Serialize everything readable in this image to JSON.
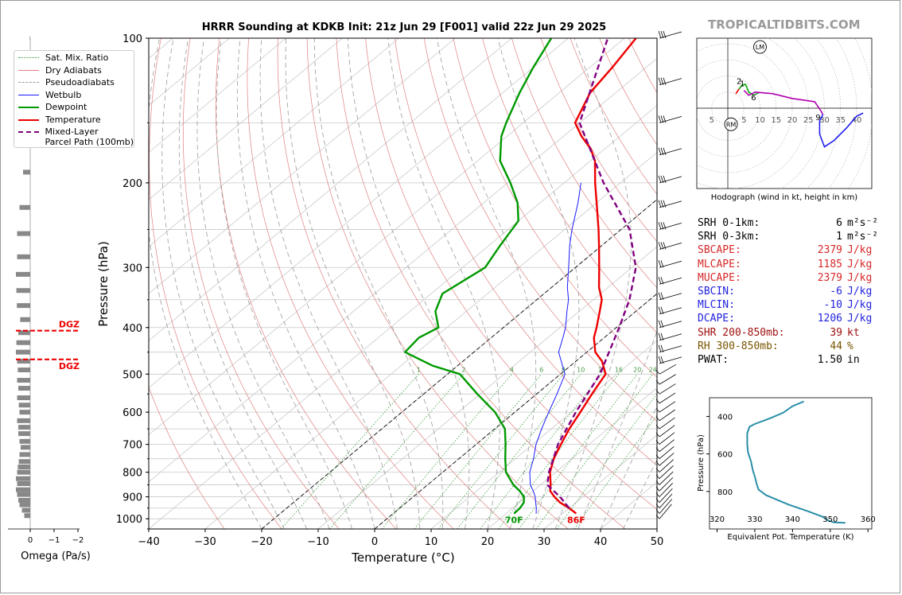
{
  "watermark": "TROPICALTIDBITS.COM",
  "title": "HRRR Sounding at KDKB Init: 21z Jun 29 [F001] valid 22z Jun 29 2025",
  "skewt": {
    "xlabel": "Temperature (°C)",
    "ylabel": "Pressure (hPa)",
    "xticks": [
      "−40",
      "−30",
      "−20",
      "−10",
      "0",
      "10",
      "20",
      "30",
      "40",
      "50"
    ],
    "yticks": [
      "100",
      "200",
      "300",
      "400",
      "500",
      "600",
      "700",
      "800",
      "900",
      "1000"
    ],
    "surface_temp_label": "86F",
    "surface_dewpoint_label": "70F",
    "mixing_ratio_labels": [
      "1",
      "2",
      "4",
      "6",
      "8",
      "10",
      "13",
      "16",
      "20",
      "24",
      "30",
      "36"
    ],
    "dgz_label": "DGZ"
  },
  "legend": [
    {
      "label": "Sat. Mix. Ratio",
      "color": "#339933",
      "style": "dotted"
    },
    {
      "label": "Dry Adiabats",
      "color": "#e08080",
      "style": "solid"
    },
    {
      "label": "Pseudoadiabats",
      "color": "#999999",
      "style": "dashed"
    },
    {
      "label": "Wetbulb",
      "color": "#1a1aff",
      "style": "solid"
    },
    {
      "label": "Dewpoint",
      "color": "#009900",
      "style": "solid"
    },
    {
      "label": "Temperature",
      "color": "#ee0000",
      "style": "solid"
    },
    {
      "label": "Mixed-Layer\nParcel Path (100mb)",
      "color": "#800080",
      "style": "dashed"
    }
  ],
  "omega": {
    "xlabel": "Omega (Pa/s)",
    "ticks": [
      "0",
      "−1",
      "−2"
    ]
  },
  "hodograph": {
    "caption": "Hodograph (wind in kt, height in km)",
    "ring_labels": [
      "5",
      "10",
      "15",
      "20",
      "25",
      "30",
      "35",
      "40"
    ],
    "neg_label": "5",
    "height_labels": [
      "2",
      "1",
      "6",
      "9"
    ],
    "lm_label": "LM",
    "rm_label": "RM"
  },
  "params": [
    {
      "key": "SRH 0-1km:",
      "value": "6",
      "unit": "m²s⁻²",
      "color": "#000000"
    },
    {
      "key": "SRH 0-3km:",
      "value": "1",
      "unit": "m²s⁻²",
      "color": "#000000"
    },
    {
      "key": "SBCAPE:",
      "value": "2379",
      "unit": "J/kg",
      "color": "#d62728"
    },
    {
      "key": "MLCAPE:",
      "value": "1185",
      "unit": "J/kg",
      "color": "#d62728"
    },
    {
      "key": "MUCAPE:",
      "value": "2379",
      "unit": "J/kg",
      "color": "#d62728"
    },
    {
      "key": "SBCIN:",
      "value": "-6",
      "unit": "J/kg",
      "color": "#2222dd"
    },
    {
      "key": "MLCIN:",
      "value": "-10",
      "unit": "J/kg",
      "color": "#2222dd"
    },
    {
      "key": "DCAPE:",
      "value": "1206",
      "unit": "J/kg",
      "color": "#2222dd"
    },
    {
      "key": "SHR 200-850mb:",
      "value": "39",
      "unit": "kt",
      "color": "#a01010"
    },
    {
      "key": "RH 300-850mb:",
      "value": "44",
      "unit": "%",
      "color": "#7a5500"
    },
    {
      "key": "PWAT:",
      "value": "1.50",
      "unit": "in",
      "color": "#000000"
    }
  ],
  "theta_e_panel": {
    "ylabel": "Pressure (hPa)",
    "xlabel": "Equivalent Pot. Temperature (K)",
    "xticks": [
      "320",
      "330",
      "340",
      "350",
      "360"
    ],
    "yticks": [
      "400",
      "600",
      "800"
    ]
  },
  "chart_data": [
    {
      "type": "line",
      "title": "HRRR Sounding at KDKB Init: 21z Jun 29 [F001] valid 22z Jun 29 2025",
      "xlabel": "Temperature (°C)",
      "ylabel": "Pressure (hPa)",
      "xlim": [
        -40,
        50
      ],
      "ylim": [
        1050,
        100
      ],
      "yscale": "log",
      "skew": true,
      "series": [
        {
          "name": "Temperature",
          "color": "#ee0000",
          "points": [
            [
              975,
              32.4
            ],
            [
              950,
              30
            ],
            [
              925,
              27.2
            ],
            [
              900,
              25
            ],
            [
              875,
              23
            ],
            [
              850,
              21.8
            ],
            [
              800,
              19
            ],
            [
              750,
              16.8
            ],
            [
              700,
              15
            ],
            [
              650,
              13.2
            ],
            [
              600,
              11.6
            ],
            [
              550,
              9.8
            ],
            [
              500,
              8
            ],
            [
              470,
              4.6
            ],
            [
              450,
              1.5
            ],
            [
              420,
              -1.8
            ],
            [
              400,
              -3.5
            ],
            [
              370,
              -6.4
            ],
            [
              350,
              -8.5
            ],
            [
              330,
              -11.6
            ],
            [
              300,
              -15.8
            ],
            [
              270,
              -20.5
            ],
            [
              250,
              -24
            ],
            [
              220,
              -30
            ],
            [
              200,
              -34.5
            ],
            [
              180,
              -39.2
            ],
            [
              170,
              -42.5
            ],
            [
              160,
              -46.8
            ],
            [
              150,
              -50.8
            ],
            [
              130,
              -54.5
            ],
            [
              115,
              -56
            ],
            [
              100,
              -58
            ]
          ]
        },
        {
          "name": "Dewpoint",
          "color": "#009900",
          "points": [
            [
              975,
              21.4
            ],
            [
              950,
              21.3
            ],
            [
              925,
              20.8
            ],
            [
              900,
              19.6
            ],
            [
              875,
              17.6
            ],
            [
              850,
              15.2
            ],
            [
              800,
              11.2
            ],
            [
              750,
              8.2
            ],
            [
              700,
              5.2
            ],
            [
              650,
              1.8
            ],
            [
              600,
              -3.5
            ],
            [
              550,
              -10.5
            ],
            [
              500,
              -17.8
            ],
            [
              480,
              -24.5
            ],
            [
              450,
              -32.2
            ],
            [
              420,
              -32.8
            ],
            [
              400,
              -31.5
            ],
            [
              370,
              -35.5
            ],
            [
              340,
              -38
            ],
            [
              300,
              -36
            ],
            [
              270,
              -38
            ],
            [
              240,
              -40
            ],
            [
              220,
              -44
            ],
            [
              200,
              -49.5
            ],
            [
              180,
              -56
            ],
            [
              160,
              -61
            ],
            [
              150,
              -63
            ],
            [
              130,
              -67
            ],
            [
              115,
              -70
            ],
            [
              100,
              -73
            ]
          ]
        },
        {
          "name": "Wetbulb",
          "color": "#1a1aff",
          "points": [
            [
              975,
              25.3
            ],
            [
              950,
              24.2
            ],
            [
              925,
              22.9
            ],
            [
              900,
              21.6
            ],
            [
              875,
              20
            ],
            [
              850,
              18.2
            ],
            [
              800,
              15.4
            ],
            [
              750,
              13.2
            ],
            [
              700,
              10.6
            ],
            [
              650,
              8.3
            ],
            [
              600,
              6
            ],
            [
              550,
              3.6
            ],
            [
              500,
              0.8
            ],
            [
              470,
              -2.6
            ],
            [
              450,
              -5
            ],
            [
              420,
              -7.3
            ],
            [
              400,
              -9
            ],
            [
              370,
              -12.2
            ],
            [
              350,
              -14.4
            ],
            [
              330,
              -17.2
            ],
            [
              300,
              -21.2
            ],
            [
              270,
              -25.7
            ],
            [
              250,
              -28.7
            ],
            [
              220,
              -33.3
            ],
            [
              200,
              -37
            ]
          ]
        },
        {
          "name": "Mixed-Layer Parcel Path (100mb)",
          "color": "#800080",
          "points": [
            [
              950,
              30
            ],
            [
              900,
              26
            ],
            [
              850,
              21.2
            ],
            [
              800,
              18.8
            ],
            [
              700,
              14.5
            ],
            [
              600,
              10.8
            ],
            [
              500,
              7
            ],
            [
              400,
              0.5
            ],
            [
              350,
              -3.6
            ],
            [
              300,
              -9.3
            ],
            [
              250,
              -18.5
            ],
            [
              200,
              -33
            ],
            [
              150,
              -50
            ],
            [
              100,
              -63
            ]
          ]
        }
      ],
      "mixing_ratio_lines_gkg": [
        1,
        2,
        4,
        6,
        8,
        10,
        13,
        16,
        20,
        24,
        30,
        36
      ]
    },
    {
      "type": "bar",
      "title": "",
      "xlabel": "Omega (Pa/s)",
      "xlim": [
        0.3,
        -2.5
      ],
      "pressure": [
        100,
        130,
        160,
        190,
        225,
        255,
        285,
        310,
        335,
        360,
        385,
        410,
        430,
        450,
        470,
        490,
        515,
        535,
        560,
        580,
        600,
        625,
        645,
        665,
        690,
        710,
        735,
        760,
        780,
        800,
        825,
        845,
        870,
        890,
        915,
        935,
        960,
        985
      ],
      "values": [
        -0.02,
        -0.08,
        -0.2,
        -0.3,
        -0.45,
        -0.55,
        -0.55,
        -0.6,
        -0.58,
        -0.56,
        -0.42,
        -0.5,
        -0.58,
        -0.6,
        -0.55,
        -0.52,
        -0.55,
        -0.5,
        -0.55,
        -0.48,
        -0.45,
        -0.55,
        -0.5,
        -0.5,
        -0.45,
        -0.4,
        -0.45,
        -0.48,
        -0.52,
        -0.55,
        -0.6,
        -0.55,
        -0.6,
        -0.55,
        -0.5,
        -0.45,
        -0.35,
        -0.25
      ],
      "dgz_pressure_bounds": [
        466,
        406
      ]
    },
    {
      "type": "line",
      "title": "Hodograph (wind in kt, height in km)",
      "xlim": [
        -10,
        45
      ],
      "ylim": [
        -25,
        22
      ],
      "series": [
        {
          "name": "0-1 km",
          "color": "#ee0000",
          "points": [
            [
              2.5,
              4.5
            ],
            [
              3.5,
              6
            ]
          ]
        },
        {
          "name": "1-3 km",
          "color": "#00aa00",
          "points": [
            [
              3.5,
              6
            ],
            [
              4.5,
              7.2
            ],
            [
              5.5,
              7.4
            ],
            [
              6.5,
              5
            ],
            [
              8,
              4
            ]
          ]
        },
        {
          "name": "3-6 km",
          "color": "#2ca02c",
          "points": [
            [
              8,
              4
            ],
            [
              10,
              5
            ]
          ]
        },
        {
          "name": "6-9 km",
          "color": "#b000b0",
          "points": [
            [
              5,
              5.5
            ],
            [
              6.5,
              4
            ],
            [
              8.5,
              5
            ],
            [
              14,
              4.5
            ],
            [
              20,
              3
            ],
            [
              27,
              2
            ],
            [
              29,
              -1
            ],
            [
              29.5,
              -2
            ]
          ]
        },
        {
          "name": "9+ km",
          "color": "#2020ee",
          "points": [
            [
              29.5,
              -2
            ],
            [
              28.5,
              -4
            ],
            [
              28.5,
              -8
            ],
            [
              30,
              -12
            ],
            [
              33,
              -10
            ],
            [
              37,
              -6
            ],
            [
              40,
              -2.5
            ],
            [
              42,
              -1.5
            ]
          ]
        }
      ],
      "lm": [
        10,
        19
      ],
      "rm": [
        1,
        -5
      ]
    },
    {
      "type": "line",
      "title": "",
      "xlabel": "Equivalent Pot. Temperature (K)",
      "ylabel": "Pressure (hPa)",
      "xlim": [
        318,
        361
      ],
      "ylim": [
        1000,
        300
      ],
      "series": [
        {
          "name": "Equivalent Pot. Temperature",
          "color": "#2a8fa8",
          "points": [
            [
              967,
              354
            ],
            [
              965,
              351
            ],
            [
              955,
              349.5
            ],
            [
              935,
              348
            ],
            [
              905,
              344
            ],
            [
              870,
              339
            ],
            [
              820,
              333
            ],
            [
              790,
              331
            ],
            [
              760,
              330.5
            ],
            [
              720,
              330
            ],
            [
              690,
              329.5
            ],
            [
              640,
              329
            ],
            [
              590,
              328.2
            ],
            [
              545,
              328
            ],
            [
              490,
              328
            ],
            [
              455,
              328.6
            ],
            [
              440,
              330
            ],
            [
              410,
              334
            ],
            [
              380,
              337.5
            ],
            [
              345,
              340
            ],
            [
              320,
              343
            ]
          ]
        }
      ]
    }
  ]
}
